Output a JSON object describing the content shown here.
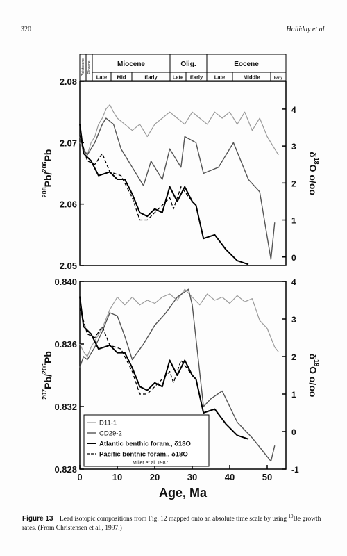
{
  "header": {
    "page_number": "320",
    "running_title": "Halliday et al."
  },
  "time_scale": {
    "epochs": [
      "Pleistocene",
      "Pliocene",
      "Miocene",
      "Olig.",
      "Eocene"
    ],
    "stages": [
      "Late",
      "Mid",
      "Early",
      "Late",
      "Early",
      "Late",
      "Middle",
      "Early"
    ]
  },
  "chart_data": [
    {
      "type": "line",
      "y_label": [
        {
          "text": "208",
          "sup": true
        },
        {
          "text": "Pb/",
          "sup": false
        },
        {
          "text": "206",
          "sup": true
        },
        {
          "text": "Pb",
          "sup": false
        }
      ],
      "y2_label": [
        {
          "text": "δ",
          "sup": false
        },
        {
          "text": "18",
          "sup": true
        },
        {
          "text": "O o/oo",
          "sup": false
        }
      ],
      "xlim": [
        0,
        55
      ],
      "ylim": [
        2.05,
        2.08
      ],
      "yticks": [
        2.05,
        2.06,
        2.07,
        2.08
      ],
      "y2lim": [
        -0.23,
        4.75
      ],
      "y2ticks": [
        0,
        1,
        2,
        3,
        4
      ],
      "series": [
        {
          "color": "#9a9a9a",
          "linewidth": 1.2,
          "x": [
            0,
            1,
            2,
            3,
            4,
            5,
            6,
            7,
            8,
            9,
            10,
            12,
            14,
            16,
            18,
            20,
            22,
            24,
            26,
            28,
            30,
            32,
            34,
            36,
            38,
            40,
            42,
            44,
            46,
            48,
            50,
            52,
            53
          ],
          "values": [
            2.07,
            2.069,
            2.068,
            2.07,
            2.071,
            2.073,
            2.074,
            2.0755,
            2.0762,
            2.075,
            2.074,
            2.073,
            2.072,
            2.073,
            2.071,
            2.073,
            2.074,
            2.075,
            2.074,
            2.073,
            2.075,
            2.074,
            2.073,
            2.075,
            2.074,
            2.075,
            2.073,
            2.075,
            2.072,
            2.074,
            2.071,
            2.069,
            2.068
          ]
        },
        {
          "color": "#555555",
          "linewidth": 1.4,
          "x": [
            0,
            1,
            2,
            4,
            6,
            7,
            9,
            11,
            14,
            17,
            19,
            22,
            24,
            27,
            28,
            31,
            33,
            37,
            41,
            45,
            48,
            51,
            52
          ],
          "values": [
            2.071,
            2.069,
            2.068,
            2.07,
            2.073,
            2.074,
            2.073,
            2.069,
            2.066,
            2.063,
            2.067,
            2.064,
            2.069,
            2.066,
            2.071,
            2.07,
            2.065,
            2.066,
            2.07,
            2.064,
            2.062,
            2.051,
            2.057
          ]
        },
        {
          "color": "#000000",
          "linewidth": 2,
          "axis": "y2",
          "x": [
            0,
            1,
            3,
            5,
            8,
            10,
            12,
            14,
            16,
            18,
            20,
            22,
            24,
            26,
            28,
            30,
            31,
            33,
            36,
            39,
            42,
            45
          ],
          "values": [
            3.6,
            2.8,
            2.6,
            2.2,
            2.3,
            2.1,
            2.1,
            1.7,
            1.2,
            1.1,
            1.3,
            1.2,
            1.9,
            1.5,
            1.9,
            1.5,
            1.4,
            0.5,
            0.6,
            0.2,
            -0.1,
            -0.2
          ]
        },
        {
          "color": "#000000",
          "linewidth": 1.3,
          "axis": "y2",
          "dashed": true,
          "x": [
            0,
            2,
            4,
            6,
            8,
            11,
            14,
            16,
            18,
            21,
            24,
            25,
            27,
            30
          ],
          "values": [
            3.3,
            2.6,
            2.5,
            2.8,
            2.3,
            2.2,
            1.6,
            1.0,
            1.0,
            1.3,
            1.6,
            1.3,
            1.9,
            1.5
          ]
        }
      ]
    },
    {
      "type": "line",
      "x_label": "Age, Ma",
      "y_label": [
        {
          "text": "207",
          "sup": true
        },
        {
          "text": "Pb/",
          "sup": false
        },
        {
          "text": "206",
          "sup": true
        },
        {
          "text": "Pb",
          "sup": false
        }
      ],
      "y2_label": [
        {
          "text": "δ",
          "sup": false
        },
        {
          "text": "18",
          "sup": true
        },
        {
          "text": "O o/oo",
          "sup": false
        }
      ],
      "xlim": [
        0,
        55
      ],
      "xticks": [
        0,
        10,
        20,
        30,
        40,
        50
      ],
      "ylim": [
        0.828,
        0.84
      ],
      "yticks": [
        0.828,
        0.832,
        0.836,
        {
          "value": 0.84,
          "label": "0.840"
        }
      ],
      "y2lim": [
        -1,
        4
      ],
      "y2ticks": [
        -1,
        0,
        1,
        2,
        3,
        4
      ],
      "legend": "lower left",
      "legend_note": "Miller et al. 1987",
      "series": [
        {
          "name": "D11-1",
          "color": "#9a9a9a",
          "linewidth": 1.2,
          "x": [
            0,
            1,
            2,
            3,
            4,
            6,
            8,
            10,
            12,
            14,
            16,
            18,
            20,
            22,
            24,
            26,
            28,
            30,
            32,
            34,
            36,
            38,
            40,
            42,
            44,
            46,
            48,
            50,
            52,
            53
          ],
          "values": [
            0.836,
            0.8355,
            0.8352,
            0.8358,
            0.8362,
            0.837,
            0.8382,
            0.839,
            0.8385,
            0.839,
            0.8385,
            0.8388,
            0.8386,
            0.839,
            0.8392,
            0.8388,
            0.8395,
            0.839,
            0.8385,
            0.8392,
            0.8388,
            0.839,
            0.8386,
            0.8391,
            0.8387,
            0.8389,
            0.8375,
            0.837,
            0.8358,
            0.8355
          ]
        },
        {
          "name": "CD29-2",
          "color": "#555555",
          "linewidth": 1.4,
          "x": [
            0,
            1,
            2,
            4,
            6,
            8,
            10,
            12,
            14,
            17,
            20,
            23,
            26,
            29,
            30,
            33,
            35,
            38,
            42,
            46,
            50,
            51,
            52
          ],
          "values": [
            0.8345,
            0.8352,
            0.835,
            0.8358,
            0.8368,
            0.838,
            0.8378,
            0.8365,
            0.835,
            0.836,
            0.8372,
            0.838,
            0.839,
            0.8395,
            0.8385,
            0.832,
            0.8325,
            0.833,
            0.831,
            0.83,
            0.8288,
            0.8285,
            0.8295
          ]
        },
        {
          "name": "Atlantic benthic foram., δ18O",
          "color": "#000000",
          "linewidth": 2,
          "axis": "y2",
          "x": [
            0,
            1,
            3,
            5,
            8,
            10,
            12,
            14,
            16,
            18,
            20,
            22,
            24,
            26,
            28,
            30,
            31,
            33,
            36,
            39,
            42,
            45
          ],
          "values": [
            3.6,
            2.8,
            2.6,
            2.2,
            2.3,
            2.1,
            2.1,
            1.7,
            1.2,
            1.1,
            1.3,
            1.2,
            1.9,
            1.5,
            1.9,
            1.5,
            1.4,
            0.5,
            0.6,
            0.2,
            -0.1,
            -0.2
          ]
        },
        {
          "name": "Pacific benthic foram., δ18O",
          "color": "#000000",
          "linewidth": 1.3,
          "axis": "y2",
          "dashed": true,
          "x": [
            0,
            2,
            4,
            6,
            8,
            11,
            14,
            16,
            18,
            21,
            24,
            25,
            27,
            30
          ],
          "values": [
            3.3,
            2.6,
            2.5,
            2.8,
            2.3,
            2.2,
            1.6,
            1.0,
            1.0,
            1.3,
            1.6,
            1.3,
            1.9,
            1.5
          ]
        }
      ]
    }
  ],
  "caption": {
    "label": "Figure 13",
    "text": [
      {
        "text": "Lead isotopic compositions from Fig. 12 mapped onto an absolute time scale by using ",
        "sup": false
      },
      {
        "text": "10",
        "sup": true
      },
      {
        "text": "Be growth rates. (From Christensen et al., 1997.)",
        "sup": false
      }
    ]
  }
}
